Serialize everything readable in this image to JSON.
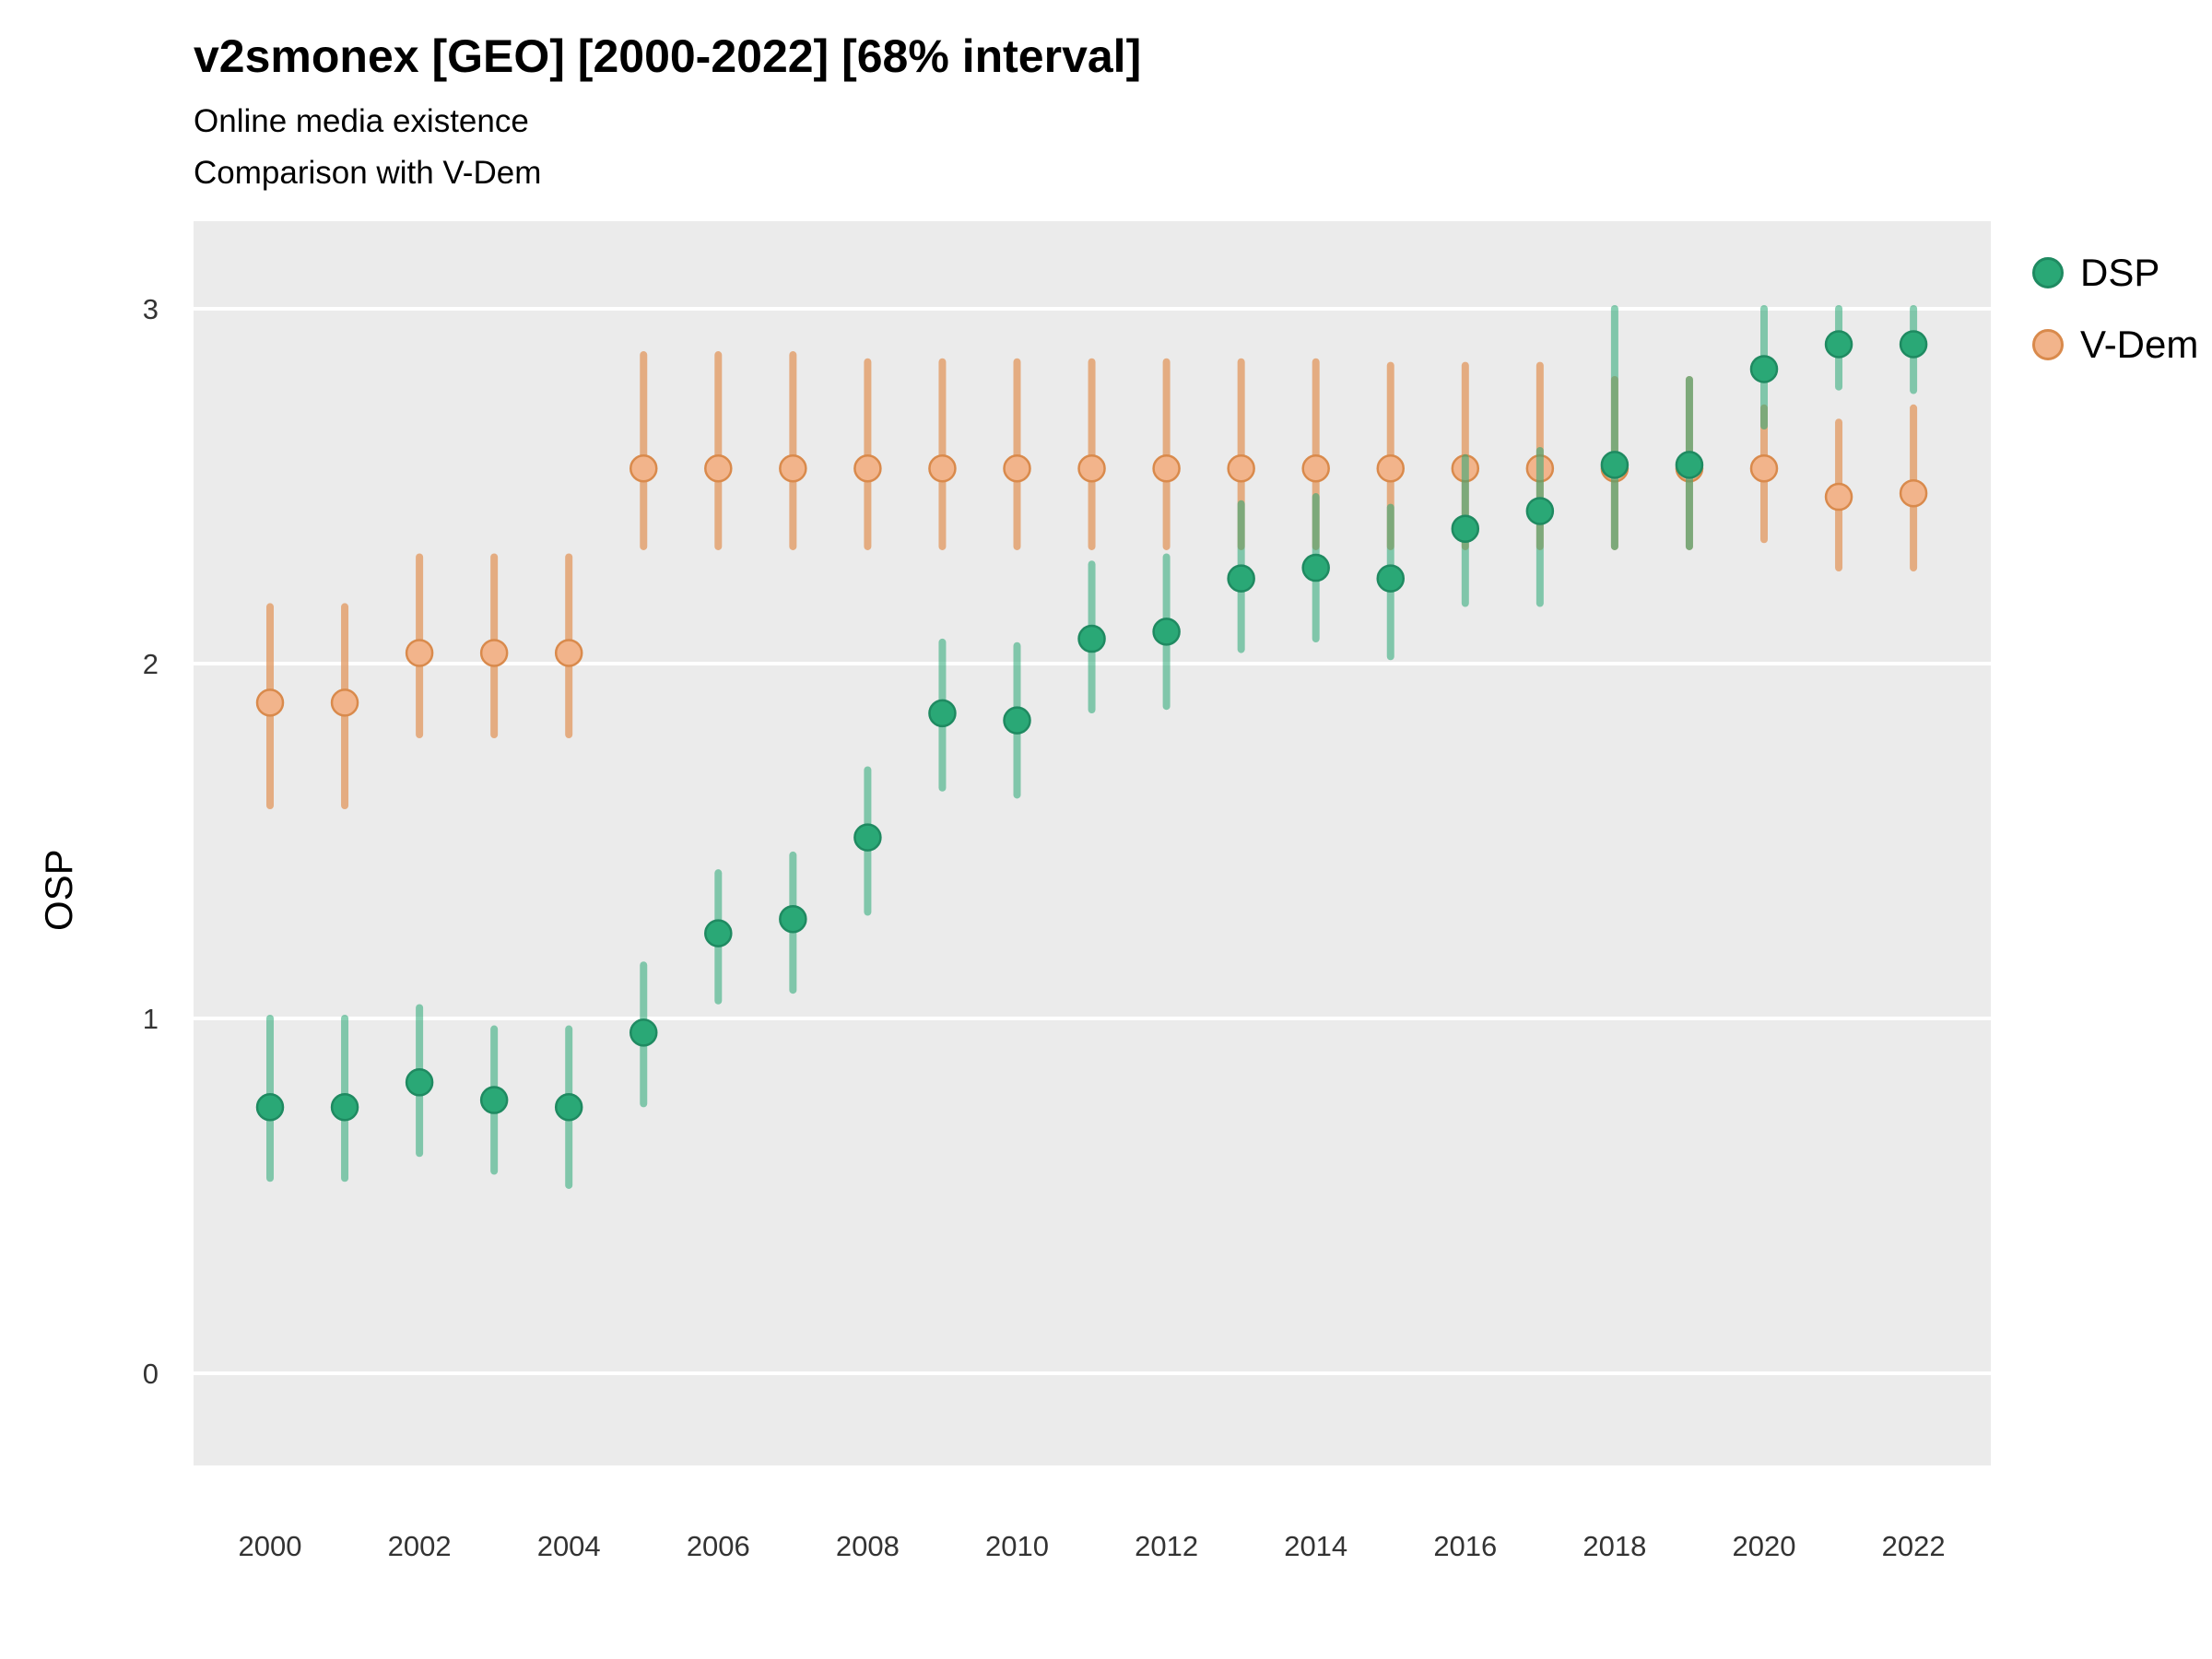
{
  "header": {
    "title": "v2smonex [GEO] [2000-2022] [68% interval]",
    "subtitle1": "Online media existence",
    "subtitle2": "Comparison with V-Dem"
  },
  "chart_data": {
    "type": "pointrange",
    "title": "v2smonex [GEO] [2000-2022] [68% interval]",
    "subtitle": [
      "Online media existence",
      "Comparison with V-Dem"
    ],
    "xlabel": "",
    "ylabel": "OSP",
    "x": [
      2000,
      2001,
      2002,
      2003,
      2004,
      2005,
      2006,
      2007,
      2008,
      2009,
      2010,
      2011,
      2012,
      2013,
      2014,
      2015,
      2016,
      2017,
      2018,
      2019,
      2020,
      2021,
      2022
    ],
    "xticks": [
      2000,
      2002,
      2004,
      2006,
      2008,
      2010,
      2012,
      2014,
      2016,
      2018,
      2020,
      2022
    ],
    "yticks": [
      0,
      1,
      2,
      3
    ],
    "ylim": [
      -0.26,
      3.26
    ],
    "grid": true,
    "panel_bg": "#ebebeb",
    "grid_color": "#ffffff",
    "tick_label_color": "#333333",
    "legend_position": "right",
    "interval_label": "68% interval",
    "series": [
      {
        "name": "V-Dem",
        "point_fill": "#f2b48b",
        "point_stroke": "#d98a4c",
        "bar_color": "#e2985e",
        "bar_opacity": 0.75,
        "est": [
          1.89,
          1.89,
          2.03,
          2.03,
          2.03,
          2.55,
          2.55,
          2.55,
          2.55,
          2.55,
          2.55,
          2.55,
          2.55,
          2.55,
          2.55,
          2.55,
          2.55,
          2.55,
          2.55,
          2.55,
          2.55,
          2.47,
          2.48
        ],
        "lo": [
          1.6,
          1.6,
          1.8,
          1.8,
          1.8,
          2.33,
          2.33,
          2.33,
          2.33,
          2.33,
          2.33,
          2.33,
          2.33,
          2.33,
          2.33,
          2.33,
          2.33,
          2.33,
          2.33,
          2.33,
          2.35,
          2.27,
          2.27
        ],
        "hi": [
          2.16,
          2.16,
          2.3,
          2.3,
          2.3,
          2.87,
          2.87,
          2.87,
          2.85,
          2.85,
          2.85,
          2.85,
          2.85,
          2.85,
          2.85,
          2.84,
          2.84,
          2.84,
          2.8,
          2.8,
          2.72,
          2.68,
          2.72
        ]
      },
      {
        "name": "DSP",
        "point_fill": "#2aa876",
        "point_stroke": "#1f8a61",
        "bar_color": "#2aa876",
        "bar_opacity": 0.55,
        "est": [
          0.75,
          0.75,
          0.82,
          0.77,
          0.75,
          0.96,
          1.24,
          1.28,
          1.51,
          1.86,
          1.84,
          2.07,
          2.09,
          2.24,
          2.27,
          2.24,
          2.38,
          2.43,
          2.56,
          2.56,
          2.83,
          2.9,
          2.9
        ],
        "lo": [
          0.55,
          0.55,
          0.62,
          0.57,
          0.53,
          0.76,
          1.05,
          1.08,
          1.3,
          1.65,
          1.63,
          1.87,
          1.88,
          2.04,
          2.07,
          2.02,
          2.17,
          2.17,
          2.33,
          2.33,
          2.67,
          2.78,
          2.77
        ],
        "hi": [
          1.0,
          1.0,
          1.03,
          0.97,
          0.97,
          1.15,
          1.41,
          1.46,
          1.7,
          2.06,
          2.05,
          2.28,
          2.3,
          2.45,
          2.47,
          2.44,
          2.58,
          2.6,
          3.0,
          2.8,
          3.0,
          3.0,
          3.0
        ]
      }
    ],
    "legend": [
      {
        "label": "DSP"
      },
      {
        "label": "V-Dem"
      }
    ]
  }
}
